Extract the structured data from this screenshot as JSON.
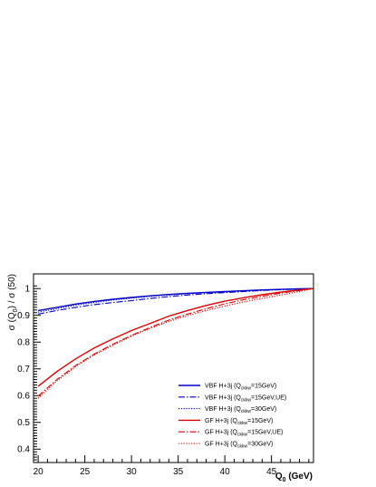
{
  "chart_data": {
    "type": "line",
    "xlabel_main": "Q",
    "xlabel_sub": "0",
    "xlabel_unit": " (GeV)",
    "ylabel_pre": "σ (Q",
    "ylabel_sub": "0",
    "ylabel_post": ") / σ (50)",
    "xlim": [
      19.5,
      49.5
    ],
    "ylim": [
      0.35,
      1.055
    ],
    "xticks": [
      20,
      25,
      30,
      35,
      40,
      45
    ],
    "yticks": [
      0.4,
      0.5,
      0.6,
      0.7,
      0.8,
      0.9,
      1
    ],
    "x": [
      20,
      22,
      24,
      26,
      28,
      30,
      32,
      34,
      36,
      38,
      40,
      42,
      44,
      46,
      48,
      49.5
    ],
    "series": [
      {
        "label_pre": "VBF H+3j (Q",
        "label_sub": "ckkw",
        "label_post": "=15GeV)",
        "color": "#0000cc",
        "dash": "solid",
        "values": [
          0.918,
          0.93,
          0.942,
          0.952,
          0.96,
          0.967,
          0.973,
          0.978,
          0.982,
          0.986,
          0.989,
          0.992,
          0.995,
          0.997,
          0.999,
          1.0
        ]
      },
      {
        "label_pre": "VBF H+3j (Q",
        "label_sub": "ckkw",
        "label_post": "=15GeV,UE)",
        "color": "#0000cc",
        "dash": "dashdot",
        "values": [
          0.905,
          0.918,
          0.93,
          0.94,
          0.948,
          0.955,
          0.963,
          0.97,
          0.976,
          0.981,
          0.985,
          0.989,
          0.993,
          0.996,
          0.998,
          1.0
        ]
      },
      {
        "label_pre": "VBF H+3j (Q",
        "label_sub": "ckkw",
        "label_post": "=30GeV)",
        "color": "#0000cc",
        "dash": "dotted",
        "values": [
          0.912,
          0.925,
          0.938,
          0.948,
          0.957,
          0.964,
          0.971,
          0.976,
          0.981,
          0.985,
          0.988,
          0.991,
          0.994,
          0.997,
          0.999,
          1.0
        ]
      },
      {
        "label_pre": "GF H+3j (Q",
        "label_sub": "ckkw",
        "label_post": "=15GeV)",
        "color": "#dd0000",
        "dash": "solid",
        "values": [
          0.635,
          0.69,
          0.737,
          0.778,
          0.812,
          0.843,
          0.87,
          0.897,
          0.918,
          0.937,
          0.953,
          0.966,
          0.977,
          0.987,
          0.995,
          1.0
        ]
      },
      {
        "label_pre": "GF H+3j (Q",
        "label_sub": "ckkw",
        "label_post": "=15GeV,UE)",
        "color": "#dd0000",
        "dash": "dashdot",
        "values": [
          0.598,
          0.66,
          0.712,
          0.755,
          0.792,
          0.825,
          0.855,
          0.882,
          0.905,
          0.925,
          0.943,
          0.958,
          0.971,
          0.983,
          0.993,
          1.0
        ]
      },
      {
        "label_pre": "GF H+3j (Q",
        "label_sub": "ckkw",
        "label_post": "=30GeV)",
        "color": "#dd0000",
        "dash": "dotted",
        "values": [
          0.59,
          0.655,
          0.708,
          0.752,
          0.788,
          0.822,
          0.851,
          0.877,
          0.899,
          0.918,
          0.935,
          0.95,
          0.963,
          0.976,
          0.989,
          1.0
        ]
      }
    ]
  }
}
